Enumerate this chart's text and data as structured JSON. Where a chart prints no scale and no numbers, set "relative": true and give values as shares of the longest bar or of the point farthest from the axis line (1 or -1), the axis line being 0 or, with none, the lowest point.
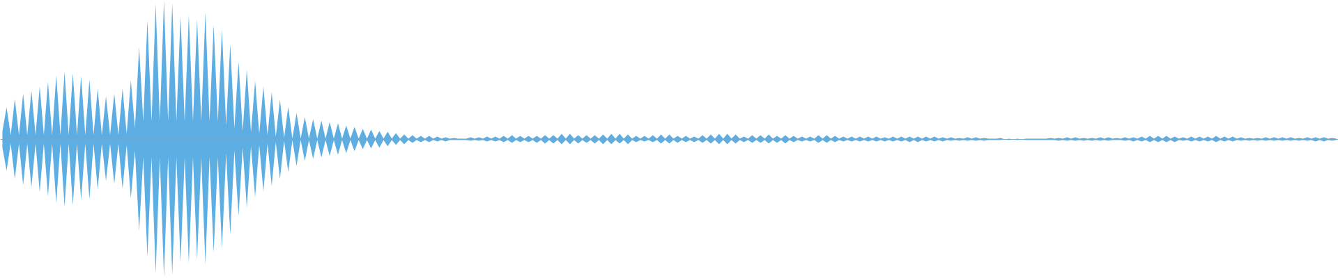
{
  "chart_data": {
    "type": "area",
    "relative": true,
    "categories": [
      null,
      null,
      null,
      null,
      null,
      null,
      null,
      null,
      null,
      null,
      null,
      null,
      null,
      null,
      null,
      null,
      null,
      null,
      null,
      null,
      null,
      null,
      null,
      null,
      null,
      null,
      null,
      null,
      null,
      null,
      null,
      null,
      null,
      null,
      null,
      null,
      null,
      null,
      null,
      null,
      null,
      null,
      null,
      null,
      null,
      null,
      null,
      null,
      null,
      null,
      null,
      null,
      null,
      null,
      null,
      null,
      null,
      null,
      null,
      null,
      null,
      null,
      null,
      null,
      null,
      null,
      null,
      null,
      null,
      null,
      null,
      null,
      null,
      null,
      null,
      null,
      null,
      null,
      null,
      null,
      null,
      null,
      null,
      null,
      null,
      null,
      null,
      null,
      null,
      null,
      null,
      null,
      null,
      null,
      null,
      null,
      null,
      null,
      null,
      null,
      null,
      null,
      null,
      null,
      null,
      null,
      null,
      null,
      null,
      null,
      null,
      null,
      null,
      null,
      null,
      null,
      null,
      null,
      null,
      null,
      null,
      null,
      null,
      null,
      null,
      null,
      null,
      null,
      null,
      null,
      null,
      null,
      null,
      null,
      null,
      null,
      null,
      null,
      null,
      null,
      null,
      null,
      null,
      null,
      null,
      null,
      null,
      null,
      null,
      null,
      null,
      null,
      null,
      null,
      null,
      null,
      null,
      null,
      null,
      null,
      null,
      null,
      null,
      null,
      null,
      null,
      null,
      null,
      null,
      null,
      null,
      null,
      null,
      null,
      null,
      null,
      null,
      null,
      null,
      null,
      null,
      null,
      null,
      null,
      null,
      null,
      null,
      null,
      null,
      null,
      null,
      null,
      null,
      null,
      null,
      null,
      null,
      null,
      null,
      null,
      null,
      null,
      null,
      null,
      null,
      null,
      null,
      null,
      null,
      null,
      null,
      null,
      null,
      null,
      null,
      null,
      null,
      null,
      null,
      null,
      null,
      null,
      null,
      null,
      null,
      null,
      null,
      null,
      null,
      null,
      null,
      null,
      null,
      null,
      null,
      null,
      null,
      null,
      null,
      null,
      null,
      null,
      null,
      null,
      null,
      null,
      null,
      null,
      null,
      null,
      null,
      null,
      null,
      null,
      null,
      null,
      null,
      null,
      null,
      null,
      null,
      null,
      null,
      null,
      null,
      null,
      null,
      null,
      null,
      null,
      null,
      null,
      null,
      null,
      null,
      null,
      null,
      null,
      null,
      null,
      null,
      null,
      null,
      null,
      null,
      null,
      null,
      null,
      null,
      null,
      null,
      null,
      null,
      null,
      null,
      null,
      null,
      null,
      null,
      null,
      null,
      null,
      null,
      null,
      null,
      null,
      null,
      null,
      null,
      null,
      null,
      null,
      null,
      null,
      null,
      null,
      null,
      null,
      null,
      null,
      null,
      null,
      null
    ],
    "series": [
      {
        "color": "#5dade2",
        "values": [
          0.06,
          0.23,
          0.03,
          0.29,
          0.03,
          0.33,
          0.03,
          0.35,
          0.03,
          0.38,
          0.03,
          0.415,
          0.03,
          0.46,
          0.03,
          0.485,
          0.03,
          0.475,
          0.03,
          0.455,
          0.03,
          0.43,
          0.03,
          0.365,
          0.03,
          0.31,
          0.03,
          0.33,
          0.03,
          0.365,
          0.04,
          0.425,
          0.08,
          0.665,
          0.13,
          0.855,
          0.13,
          0.975,
          0.13,
          1.0,
          0.13,
          0.98,
          0.13,
          0.885,
          0.13,
          0.895,
          0.13,
          0.865,
          0.13,
          0.915,
          0.13,
          0.825,
          0.13,
          0.79,
          0.1,
          0.685,
          0.08,
          0.56,
          0.06,
          0.5,
          0.05,
          0.42,
          0.04,
          0.38,
          0.03,
          0.34,
          0.02,
          0.285,
          0.01,
          0.235,
          0.005,
          0.19,
          0.005,
          0.16,
          0.005,
          0.145,
          0.005,
          0.135,
          0.005,
          0.125,
          0.005,
          0.115,
          0.005,
          0.1,
          0.005,
          0.09,
          0.005,
          0.075,
          0.005,
          0.07,
          0.005,
          0.06,
          0.005,
          0.055,
          0.005,
          0.045,
          0.005,
          0.035,
          0.005,
          0.03,
          0.005,
          0.025,
          0.005,
          0.025,
          0.005,
          0.02,
          0.005,
          0.015,
          0.005,
          0.01,
          0.005,
          0.005,
          0.005,
          0.015,
          0.005,
          0.015,
          0.005,
          0.02,
          0.005,
          0.02,
          0.005,
          0.025,
          0.005,
          0.03,
          0.005,
          0.025,
          0.005,
          0.025,
          0.005,
          0.025,
          0.005,
          0.03,
          0.005,
          0.03,
          0.005,
          0.04,
          0.005,
          0.04,
          0.005,
          0.03,
          0.005,
          0.03,
          0.005,
          0.03,
          0.005,
          0.035,
          0.005,
          0.04,
          0.005,
          0.04,
          0.005,
          0.035,
          0.005,
          0.025,
          0.005,
          0.025,
          0.005,
          0.03,
          0.005,
          0.035,
          0.005,
          0.035,
          0.005,
          0.025,
          0.005,
          0.025,
          0.005,
          0.02,
          0.005,
          0.03,
          0.005,
          0.035,
          0.005,
          0.04,
          0.005,
          0.04,
          0.005,
          0.035,
          0.005,
          0.02,
          0.005,
          0.03,
          0.005,
          0.03,
          0.005,
          0.035,
          0.005,
          0.025,
          0.005,
          0.03,
          0.005,
          0.025,
          0.005,
          0.02,
          0.005,
          0.02,
          0.005,
          0.03,
          0.005,
          0.03,
          0.005,
          0.025,
          0.005,
          0.02,
          0.005,
          0.02,
          0.005,
          0.02,
          0.005,
          0.02,
          0.005,
          0.02,
          0.005,
          0.015,
          0.005,
          0.02,
          0.005,
          0.02,
          0.005,
          0.02,
          0.005,
          0.02,
          0.005,
          0.02,
          0.005,
          0.02,
          0.005,
          0.015,
          0.005,
          0.015,
          0.005,
          0.01,
          0.005,
          0.015,
          0.005,
          0.015,
          0.005,
          0.01,
          0.005,
          0.005,
          0.005,
          0.01,
          0,
          0.005,
          0,
          0.005,
          0,
          0.005,
          0.005,
          0.005,
          0.005,
          0.005,
          0.005,
          0.01,
          0.005,
          0.01,
          0.005,
          0.015,
          0.005,
          0.015,
          0.005,
          0.01,
          0.005,
          0.01,
          0.005,
          0.015,
          0.005,
          0.015,
          0.005,
          0.01,
          0.005,
          0.015,
          0.005,
          0.015,
          0.005,
          0.02,
          0.005,
          0.025,
          0.005,
          0.025,
          0.005,
          0.025,
          0.005,
          0.02,
          0.005,
          0.015,
          0.005,
          0.02,
          0.005,
          0.02,
          0.005,
          0.02,
          0.005,
          0.025,
          0.005,
          0.02,
          0.005,
          0.02,
          0.005,
          0.015,
          0.005,
          0.01,
          0.005,
          0.01,
          0.005,
          0.015,
          0.005,
          0.015,
          0.005,
          0.015,
          0.005,
          0.015,
          0.005,
          0.01,
          0.005,
          0.015,
          0.005,
          0.015,
          0.005,
          0.015,
          0.005,
          0.01,
          0.005
        ]
      },
      {
        "color": "#5daee2",
        "values": [
          -0.06,
          -0.225,
          -0.03,
          -0.285,
          -0.03,
          -0.33,
          -0.03,
          -0.345,
          -0.03,
          -0.38,
          -0.03,
          -0.41,
          -0.03,
          -0.46,
          -0.03,
          -0.485,
          -0.03,
          -0.475,
          -0.03,
          -0.435,
          -0.03,
          -0.43,
          -0.03,
          -0.36,
          -0.03,
          -0.3,
          -0.03,
          -0.32,
          -0.03,
          -0.355,
          -0.04,
          -0.425,
          -0.08,
          -0.66,
          -0.13,
          -0.845,
          -0.13,
          -0.965,
          -0.13,
          -0.99,
          -0.13,
          -0.975,
          -0.13,
          -0.885,
          -0.13,
          -0.89,
          -0.13,
          -0.865,
          -0.13,
          -0.9,
          -0.13,
          -0.815,
          -0.13,
          -0.785,
          -0.1,
          -0.685,
          -0.08,
          -0.55,
          -0.06,
          -0.49,
          -0.05,
          -0.415,
          -0.04,
          -0.375,
          -0.03,
          -0.335,
          -0.02,
          -0.285,
          -0.01,
          -0.235,
          -0.005,
          -0.19,
          -0.005,
          -0.155,
          -0.005,
          -0.14,
          -0.005,
          -0.13,
          -0.005,
          -0.12,
          -0.005,
          -0.11,
          -0.005,
          -0.1,
          -0.005,
          -0.085,
          -0.005,
          -0.07,
          -0.005,
          -0.065,
          -0.005,
          -0.06,
          -0.005,
          -0.05,
          -0.005,
          -0.04,
          -0.005,
          -0.035,
          -0.005,
          -0.025,
          -0.005,
          -0.02,
          -0.005,
          -0.02,
          -0.005,
          -0.015,
          -0.005,
          -0.015,
          -0.005,
          -0.005,
          -0.005,
          -0.005,
          -0.005,
          -0.01,
          -0.005,
          -0.01,
          -0.005,
          -0.015,
          -0.005,
          -0.015,
          -0.005,
          -0.02,
          -0.005,
          -0.025,
          -0.005,
          -0.02,
          -0.005,
          -0.02,
          -0.005,
          -0.025,
          -0.005,
          -0.03,
          -0.005,
          -0.03,
          -0.005,
          -0.035,
          -0.005,
          -0.035,
          -0.005,
          -0.03,
          -0.005,
          -0.025,
          -0.005,
          -0.03,
          -0.005,
          -0.035,
          -0.005,
          -0.035,
          -0.005,
          -0.03,
          -0.005,
          -0.035,
          -0.005,
          -0.02,
          -0.005,
          -0.015,
          -0.005,
          -0.02,
          -0.005,
          -0.03,
          -0.005,
          -0.03,
          -0.005,
          -0.025,
          -0.005,
          -0.02,
          -0.005,
          -0.02,
          -0.005,
          -0.025,
          -0.005,
          -0.03,
          -0.005,
          -0.035,
          -0.005,
          -0.035,
          -0.005,
          -0.03,
          -0.005,
          -0.02,
          -0.005,
          -0.025,
          -0.005,
          -0.025,
          -0.005,
          -0.03,
          -0.005,
          -0.025,
          -0.005,
          -0.03,
          -0.005,
          -0.02,
          -0.005,
          -0.015,
          -0.005,
          -0.015,
          -0.005,
          -0.025,
          -0.005,
          -0.025,
          -0.005,
          -0.02,
          -0.005,
          -0.015,
          -0.005,
          -0.015,
          -0.005,
          -0.015,
          -0.005,
          -0.015,
          -0.005,
          -0.015,
          -0.005,
          -0.015,
          -0.005,
          -0.015,
          -0.005,
          -0.015,
          -0.005,
          -0.02,
          -0.005,
          -0.02,
          -0.005,
          -0.015,
          -0.005,
          -0.015,
          -0.005,
          -0.015,
          -0.005,
          -0.01,
          -0.005,
          -0.01,
          -0.005,
          -0.01,
          -0.005,
          -0.01,
          -0.005,
          -0.01,
          -0.005,
          -0.005,
          -0.005,
          -0.005,
          0,
          -0.005,
          0,
          -0.005,
          0,
          -0.005,
          -0.005,
          -0.005,
          -0.005,
          -0.005,
          -0.005,
          -0.005,
          -0.005,
          -0.01,
          -0.005,
          -0.01,
          -0.005,
          -0.01,
          -0.005,
          -0.01,
          -0.005,
          -0.01,
          -0.005,
          -0.01,
          -0.005,
          -0.01,
          -0.005,
          -0.005,
          -0.005,
          -0.01,
          -0.005,
          -0.015,
          -0.005,
          -0.015,
          -0.005,
          -0.02,
          -0.005,
          -0.02,
          -0.005,
          -0.02,
          -0.005,
          -0.02,
          -0.005,
          -0.01,
          -0.005,
          -0.015,
          -0.005,
          -0.015,
          -0.005,
          -0.015,
          -0.005,
          -0.02,
          -0.005,
          -0.015,
          -0.005,
          -0.015,
          -0.005,
          -0.01,
          -0.005,
          -0.01,
          -0.005,
          -0.01,
          -0.005,
          -0.01,
          -0.005,
          -0.01,
          -0.005,
          -0.01,
          -0.005,
          -0.01,
          -0.005,
          -0.01,
          -0.005,
          -0.01,
          -0.005,
          -0.015,
          -0.005,
          -0.015,
          -0.005,
          -0.01,
          -0.005
        ]
      }
    ]
  }
}
